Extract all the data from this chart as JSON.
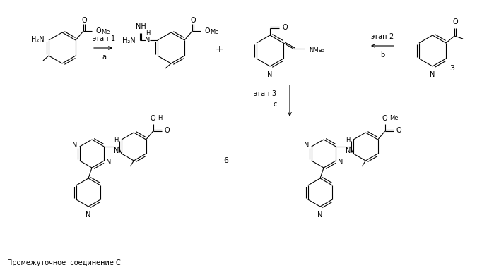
{
  "bg_color": "#ffffff",
  "text_color": "#000000",
  "figsize": [
    6.99,
    3.93
  ],
  "dpi": 100,
  "footnote": "Промежуточное  соединение C",
  "step1_label": "этап-1",
  "step1_sublabel": "a",
  "step2_label": "этап-2",
  "step2_sublabel": "b",
  "step3_label": "этап-3",
  "step3_sublabel": "c",
  "compound3_label": "3",
  "compound6_label": "6",
  "line_color": "#000000",
  "font_size": 7,
  "font_size_small": 6
}
